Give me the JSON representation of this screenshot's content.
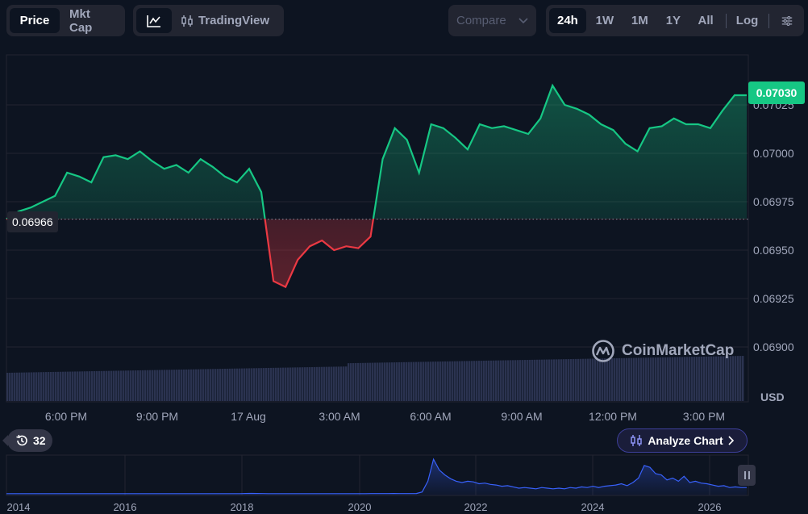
{
  "toolbar": {
    "price_label": "Price",
    "mktcap_label": "Mkt Cap",
    "tradingview_label": "TradingView",
    "compare_label": "Compare",
    "ranges": [
      "24h",
      "1W",
      "1M",
      "1Y",
      "All"
    ],
    "active_range": "24h",
    "log_label": "Log"
  },
  "price_tag": "0.07030",
  "open_tag": "0.06966",
  "currency": "USD",
  "watermark": "CoinMarketCap",
  "history_count": "32",
  "analyze_label": "Analyze Chart",
  "colors": {
    "up": "#16c784",
    "down": "#ea3943",
    "volume": "#2b3350",
    "navigator": "#3861fb",
    "background": "#0d1421"
  },
  "chart_data": {
    "type": "line",
    "y_ticks": [
      "0.07025",
      "0.07000",
      "0.06975",
      "0.06950",
      "0.06925",
      "0.06900"
    ],
    "ylim": [
      0.06895,
      0.0705
    ],
    "x_ticks": [
      "6:00 PM",
      "9:00 PM",
      "17 Aug",
      "3:00 AM",
      "6:00 AM",
      "9:00 AM",
      "12:00 PM",
      "3:00 PM"
    ],
    "baseline": 0.06966,
    "last": 0.0703,
    "series": [
      {
        "x": [
          0,
          0.4,
          0.8,
          1.2,
          1.6,
          2.0,
          2.4,
          2.8,
          3.2,
          3.6,
          4.0,
          4.4,
          4.8,
          5.2,
          5.6,
          6.0,
          6.4,
          6.8,
          7.2,
          7.6,
          8.0,
          8.4,
          8.8,
          9.2,
          9.6,
          10.0,
          10.4,
          10.8,
          11.2,
          11.6,
          12.0,
          12.4,
          12.8,
          13.2,
          13.6,
          14.0,
          14.4,
          14.8,
          15.2,
          15.6,
          16.0,
          16.4,
          16.8,
          17.2,
          17.6,
          18.0,
          18.4,
          18.8,
          19.2,
          19.6,
          20.0,
          20.4,
          20.8,
          21.2,
          21.6,
          22.0,
          22.4,
          22.8,
          23.2,
          23.6,
          24.0,
          24.4
        ],
        "values": [
          0.06966,
          0.0697,
          0.06972,
          0.06975,
          0.06978,
          0.0699,
          0.06988,
          0.06985,
          0.06998,
          0.06999,
          0.06997,
          0.07001,
          0.06996,
          0.06992,
          0.06994,
          0.0699,
          0.06997,
          0.06993,
          0.06988,
          0.06985,
          0.06992,
          0.0698,
          0.06934,
          0.06931,
          0.06945,
          0.06952,
          0.06955,
          0.0695,
          0.06952,
          0.06951,
          0.06957,
          0.06997,
          0.07013,
          0.07007,
          0.0699,
          0.07015,
          0.07013,
          0.07008,
          0.07002,
          0.07015,
          0.07013,
          0.07014,
          0.07012,
          0.0701,
          0.07018,
          0.07035,
          0.07025,
          0.07023,
          0.0702,
          0.07015,
          0.07012,
          0.07005,
          0.07001,
          0.07013,
          0.07014,
          0.07018,
          0.07015,
          0.07015,
          0.07013,
          0.07022,
          0.0703,
          0.0703
        ]
      }
    ]
  },
  "navigator": {
    "x_ticks": [
      "2014",
      "2016",
      "2018",
      "2020",
      "2022",
      "2024",
      "2026"
    ],
    "values": [
      0.002,
      0.002,
      0.002,
      0.002,
      0.002,
      0.002,
      0.002,
      0.002,
      0.002,
      0.002,
      0.002,
      0.002,
      0.002,
      0.002,
      0.002,
      0.002,
      0.002,
      0.002,
      0.002,
      0.002,
      0.002,
      0.002,
      0.003,
      0.003,
      0.003,
      0.003,
      0.003,
      0.003,
      0.003,
      0.003,
      0.003,
      0.003,
      0.003,
      0.003,
      0.003,
      0.003,
      0.003,
      0.003,
      0.003,
      0.003,
      0.003,
      0.003,
      0.005,
      0.006,
      0.005,
      0.004,
      0.003,
      0.003,
      0.003,
      0.003,
      0.003,
      0.003,
      0.003,
      0.003,
      0.003,
      0.003,
      0.003,
      0.003,
      0.003,
      0.003,
      0.003,
      0.003,
      0.003,
      0.003,
      0.004,
      0.004,
      0.004,
      0.004,
      0.005,
      0.004,
      0.004,
      0.004,
      0.005,
      0.03,
      0.2,
      0.55,
      0.38,
      0.3,
      0.24,
      0.2,
      0.18,
      0.2,
      0.19,
      0.16,
      0.17,
      0.15,
      0.14,
      0.12,
      0.13,
      0.11,
      0.09,
      0.1,
      0.09,
      0.08,
      0.1,
      0.09,
      0.08,
      0.09,
      0.08,
      0.1,
      0.09,
      0.11,
      0.1,
      0.12,
      0.1,
      0.12,
      0.13,
      0.14,
      0.16,
      0.13,
      0.18,
      0.25,
      0.45,
      0.42,
      0.32,
      0.3,
      0.22,
      0.25,
      0.2,
      0.28,
      0.18,
      0.2,
      0.17,
      0.16,
      0.14,
      0.12,
      0.13,
      0.1,
      0.11,
      0.1,
      0.1
    ]
  }
}
